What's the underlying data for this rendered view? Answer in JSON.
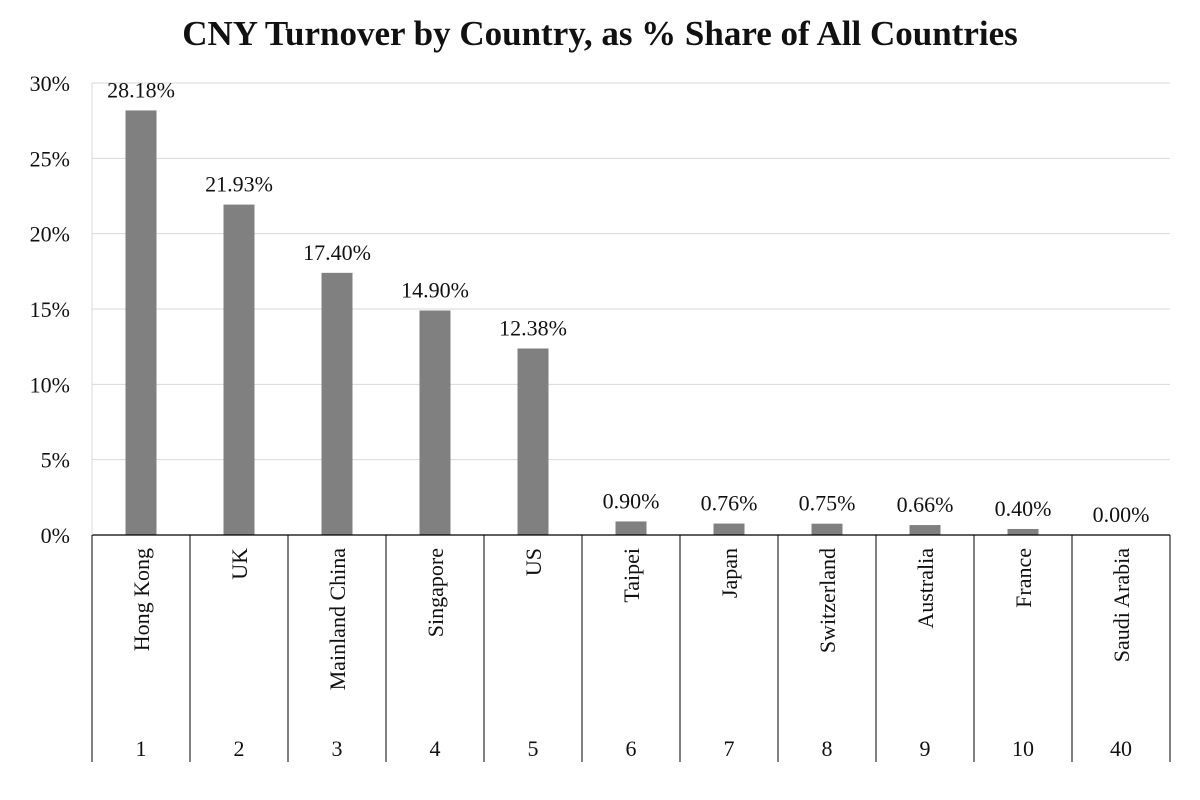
{
  "chart_data": {
    "type": "bar",
    "title": "CNY Turnover by Country, as % Share of All Countries",
    "xlabel": "",
    "ylabel": "",
    "categories": [
      "Hong Kong",
      "UK",
      "Mainland China",
      "Singapore",
      "US",
      "Taipei",
      "Japan",
      "Switzerland",
      "Australia",
      "France",
      "Saudi Arabia"
    ],
    "ranks": [
      "1",
      "2",
      "3",
      "4",
      "5",
      "6",
      "7",
      "8",
      "9",
      "10",
      "40"
    ],
    "values": [
      28.18,
      21.93,
      17.4,
      14.9,
      12.38,
      0.9,
      0.76,
      0.75,
      0.66,
      0.4,
      0.0
    ],
    "value_labels": [
      "28.18%",
      "21.93%",
      "17.40%",
      "14.90%",
      "12.38%",
      "0.90%",
      "0.76%",
      "0.75%",
      "0.66%",
      "0.40%",
      "0.00%"
    ],
    "yticks": [
      0,
      5,
      10,
      15,
      20,
      25,
      30
    ],
    "ytick_labels": [
      "0%",
      "5%",
      "10%",
      "15%",
      "20%",
      "25%",
      "30%"
    ],
    "ylim": [
      0,
      30
    ],
    "grid": true,
    "legend": "none",
    "colors": {
      "bar": "#808080",
      "grid": "#d9d9d9",
      "axis": "#000000"
    }
  }
}
